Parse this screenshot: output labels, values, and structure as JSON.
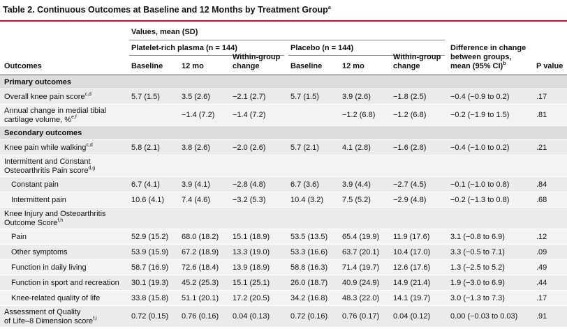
{
  "header": {
    "title": "Table 2. Continuous Outcomes at Baseline and 12 Months by Treatment Group",
    "title_sup": "a"
  },
  "table": {
    "spanner": "Values, mean (SD)",
    "groups": [
      "Platelet-rich plasma (n = 144)",
      "Placebo (n = 144)"
    ],
    "columns": [
      {
        "lines": [
          "Outcomes"
        ]
      },
      {
        "lines": [
          "Baseline"
        ]
      },
      {
        "lines": [
          "12 mo"
        ]
      },
      {
        "lines": [
          "Within-group",
          "change"
        ]
      },
      {
        "lines": [
          "Baseline"
        ]
      },
      {
        "lines": [
          "12 mo"
        ]
      },
      {
        "lines": [
          "Within-group",
          "change"
        ]
      },
      {
        "lines": [
          "Difference in change",
          "between groups,",
          "mean (95% CI)"
        ],
        "sup": "b"
      },
      {
        "lines": [
          "P value"
        ]
      }
    ],
    "sections": [
      {
        "title": "Primary outcomes",
        "rows": [
          {
            "label_lines": [
              "Overall knee pain score"
            ],
            "sup": "c,d",
            "cells": [
              "5.7 (1.5)",
              "3.5 (2.6)",
              "−2.1 (2.7)",
              "5.7 (1.5)",
              "3.9 (2.6)",
              "−1.8 (2.5)",
              "−0.4 (−0.9 to 0.2)",
              ".17"
            ]
          },
          {
            "label_lines": [
              "Annual change in medial tibial",
              "cartilage volume, %"
            ],
            "sup": "e,f",
            "cells": [
              null,
              "−1.4 (7.2)",
              "−1.4 (7.2)",
              null,
              "−1.2 (6.8)",
              "−1.2 (6.8)",
              "−0.2 (−1.9 to 1.5)",
              ".81"
            ]
          }
        ]
      },
      {
        "title": "Secondary outcomes",
        "rows": [
          {
            "label_lines": [
              "Knee pain while walking"
            ],
            "sup": "c,d",
            "cells": [
              "5.8 (2.1)",
              "3.8 (2.6)",
              "−2.0 (2.6)",
              "5.7 (2.1)",
              "4.1 (2.8)",
              "−1.6 (2.8)",
              "−0.4 (−1.0 to 0.2)",
              ".21"
            ]
          },
          {
            "label_lines": [
              "Intermittent and Constant",
              "Osteoarthritis Pain score"
            ],
            "sup": "d,g",
            "subrows": [
              {
                "label": "Constant pain",
                "cells": [
                  "6.7 (4.1)",
                  "3.9 (4.1)",
                  "−2.8 (4.8)",
                  "6.7 (3.6)",
                  "3.9 (4.4)",
                  "−2.7 (4.5)",
                  "−0.1 (−1.0 to 0.8)",
                  ".84"
                ]
              },
              {
                "label": "Intermittent pain",
                "cells": [
                  "10.6 (4.1)",
                  "7.4 (4.6)",
                  "−3.2 (5.3)",
                  "10.4 (3.2)",
                  "7.5 (5.2)",
                  "−2.9 (4.8)",
                  "−0.2 (−1.3 to 0.8)",
                  ".68"
                ]
              }
            ]
          },
          {
            "label_lines": [
              "Knee Injury and Osteoarthritis",
              "Outcome Score"
            ],
            "sup": "f,h",
            "subrows": [
              {
                "label": "Pain",
                "cells": [
                  "52.9 (15.2)",
                  "68.0 (18.2)",
                  "15.1 (18.9)",
                  "53.5 (13.5)",
                  "65.4 (19.9)",
                  "11.9 (17.6)",
                  "3.1 (−0.8 to 6.9)",
                  ".12"
                ]
              },
              {
                "label": "Other symptoms",
                "cells": [
                  "53.9 (15.9)",
                  "67.2 (18.9)",
                  "13.3 (19.0)",
                  "53.3 (16.6)",
                  "63.7 (20.1)",
                  "10.4 (17.0)",
                  "3.3 (−0.5 to 7.1)",
                  ".09"
                ]
              },
              {
                "label": "Function in daily living",
                "cells": [
                  "58.7 (16.9)",
                  "72.6 (18.4)",
                  "13.9 (18.9)",
                  "58.8 (16.3)",
                  "71.4 (19.7)",
                  "12.6 (17.6)",
                  "1.3 (−2.5 to 5.2)",
                  ".49"
                ]
              },
              {
                "label": "Function in sport and recreation",
                "cells": [
                  "30.1 (19.3)",
                  "45.2 (25.3)",
                  "15.1 (25.1)",
                  "26.0 (18.7)",
                  "40.9 (24.9)",
                  "14.9 (21.4)",
                  "1.9 (−3.0 to 6.9)",
                  ".44"
                ]
              },
              {
                "label": "Knee-related quality of life",
                "cells": [
                  "33.8 (15.8)",
                  "51.1 (20.1)",
                  "17.2 (20.5)",
                  "34.2 (16.8)",
                  "48.3 (22.0)",
                  "14.1 (19.7)",
                  "3.0 (−1.3 to 7.3)",
                  ".17"
                ]
              }
            ]
          },
          {
            "label_lines": [
              "Assessment of Quality",
              "of Life–8 Dimension score"
            ],
            "sup": "f,i",
            "cells": [
              "0.72 (0.15)",
              "0.76 (0.16)",
              "0.04 (0.13)",
              "0.72 (0.16)",
              "0.76 (0.17)",
              "0.04 (0.12)",
              "0.00 (−0.03 to 0.03)",
              ".91"
            ]
          }
        ]
      }
    ]
  }
}
